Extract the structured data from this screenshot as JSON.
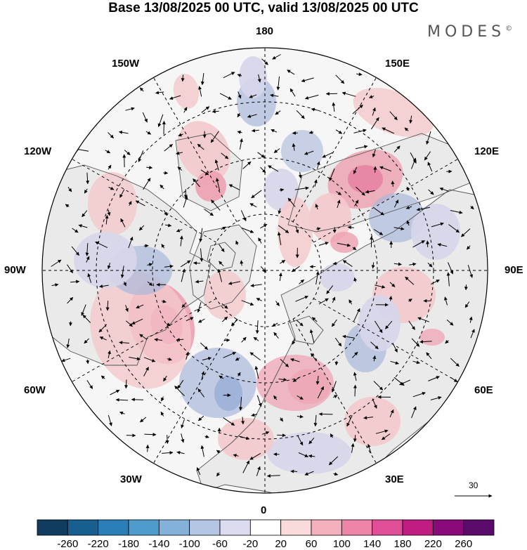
{
  "title": "Base 13/08/2025 00 UTC, valid 13/08/2025 00 UTC",
  "logo": "MODES",
  "logo_mark": "©",
  "longitude_labels": {
    "top": "180",
    "bottom": "0",
    "left": "90W",
    "right": "90E",
    "upper_left_1": "150W",
    "upper_left_2": "120W",
    "upper_right_1": "150E",
    "upper_right_2": "120E",
    "lower_left_1": "60W",
    "lower_left_2": "30W",
    "lower_right_1": "60E",
    "lower_right_2": "30E"
  },
  "vector_scale": "30",
  "colorbar": {
    "labels": [
      "-260",
      "-220",
      "-180",
      "-140",
      "-100",
      "-60",
      "-20",
      "20",
      "60",
      "100",
      "140",
      "180",
      "220",
      "260"
    ],
    "colors": [
      "#103d5f",
      "#165f8f",
      "#2b7fb8",
      "#4f9bcc",
      "#84b1d8",
      "#b4c6e4",
      "#dcdcf0",
      "#ffffff",
      "#fadbdc",
      "#f5b0bd",
      "#ee85a8",
      "#e04e97",
      "#c01c82",
      "#8a0a7a",
      "#5a0a6b"
    ]
  },
  "anomaly_colors": {
    "pos_light": "#f4c9cc",
    "pos_mid": "#eea0b0",
    "pos_strong": "#e46e97",
    "neg_light": "#d6d6ea",
    "neg_mid": "#aab8dc",
    "neg_strong": "#8aa4d2",
    "land": "#eaeaea",
    "coast": "#555555"
  }
}
